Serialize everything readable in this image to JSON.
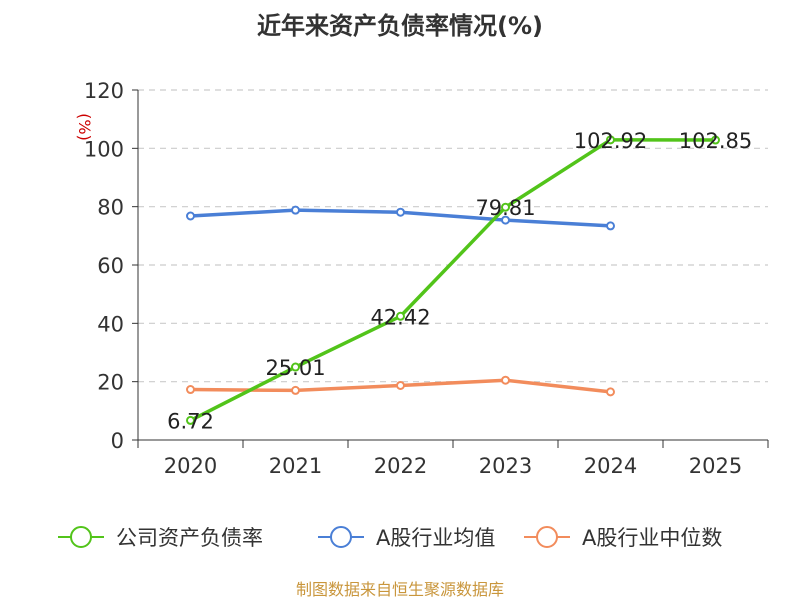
{
  "chart_data": {
    "type": "line",
    "title": "近年来资产负债率情况(%)",
    "ylabel": "(%)",
    "xlabel": "",
    "categories": [
      "2020",
      "2021",
      "2022",
      "2023",
      "2024",
      "2025"
    ],
    "ylim": [
      0,
      120
    ],
    "yticks": [
      0,
      20,
      40,
      60,
      80,
      100,
      120
    ],
    "grid": true,
    "legend_position": "bottom",
    "series": [
      {
        "name": "公司资产负债率",
        "color": "#52c41a",
        "values": [
          6.72,
          25.01,
          42.42,
          79.81,
          102.92,
          102.85
        ],
        "labels": [
          "6.72",
          "25.01",
          "42.42",
          "79.81",
          "102.92",
          "102.85"
        ],
        "show_labels": true
      },
      {
        "name": "A股行业均值",
        "color": "#4a7fd6",
        "values": [
          76.8,
          78.8,
          78.1,
          75.4,
          73.4,
          null
        ],
        "show_labels": false
      },
      {
        "name": "A股行业中位数",
        "color": "#f28c5c",
        "values": [
          17.3,
          17.0,
          18.7,
          20.5,
          16.5,
          null
        ],
        "show_labels": false
      }
    ]
  },
  "footer": {
    "source": "制图数据来自恒生聚源数据库",
    "color": "#c9963c"
  }
}
